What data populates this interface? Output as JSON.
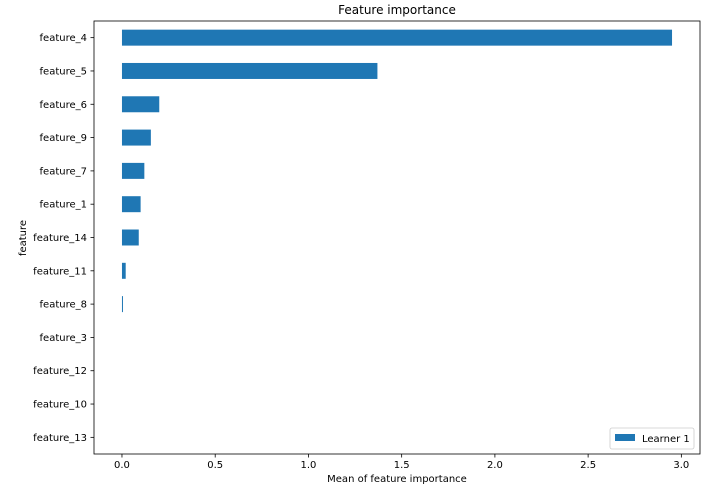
{
  "chart_data": {
    "type": "bar",
    "orientation": "horizontal",
    "title": "Feature importance",
    "xlabel": "Mean of feature importance",
    "ylabel": "feature",
    "categories": [
      "feature_4",
      "feature_5",
      "feature_6",
      "feature_9",
      "feature_7",
      "feature_1",
      "feature_14",
      "feature_11",
      "feature_8",
      "feature_3",
      "feature_12",
      "feature_10",
      "feature_13"
    ],
    "series": [
      {
        "name": "Learner 1",
        "color": "#1f77b4",
        "values": [
          2.95,
          1.37,
          0.2,
          0.155,
          0.12,
          0.1,
          0.09,
          0.02,
          0.005,
          0.0,
          0.0,
          0.0,
          0.0
        ]
      }
    ],
    "xlim": [
      -0.15,
      3.1
    ],
    "xticks": [
      0.0,
      0.5,
      1.0,
      1.5,
      2.0,
      2.5,
      3.0
    ],
    "xtick_labels": [
      "0.0",
      "0.5",
      "1.0",
      "1.5",
      "2.0",
      "2.5",
      "3.0"
    ],
    "grid": false,
    "legend_position": "lower-right"
  }
}
